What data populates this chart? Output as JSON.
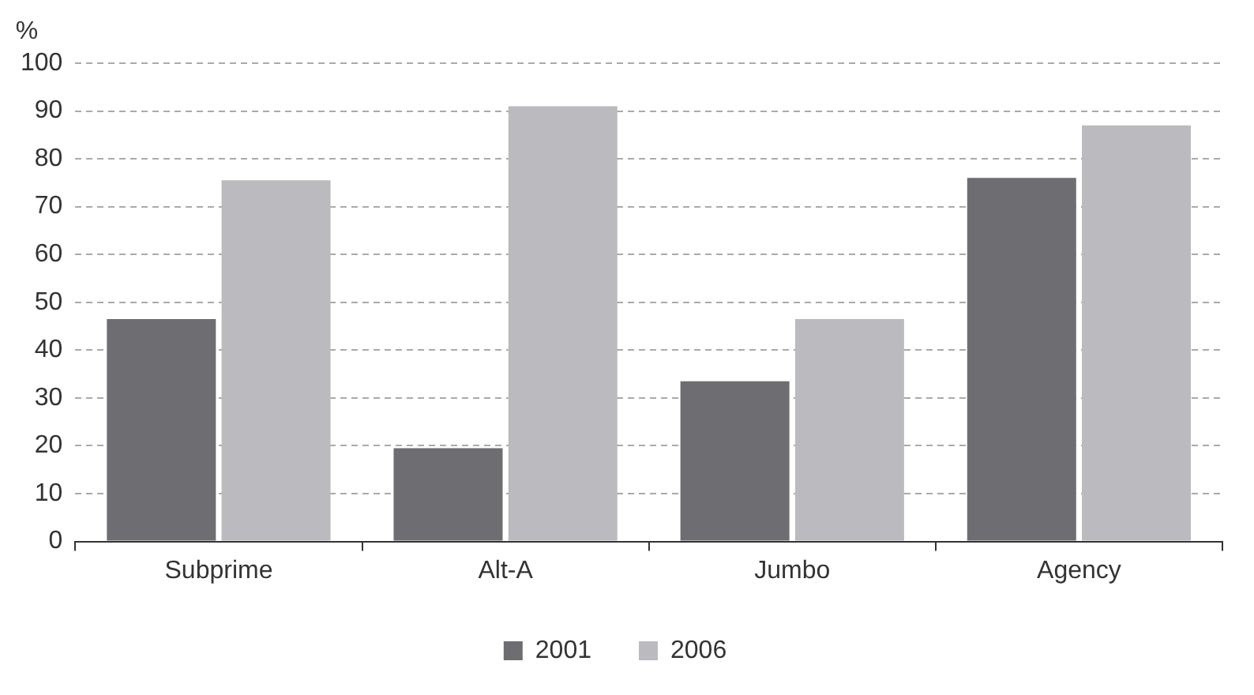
{
  "chart_data": {
    "type": "bar",
    "ylabel": "%",
    "categories": [
      "Subprime",
      "Alt-A",
      "Jumbo",
      "Agency"
    ],
    "series": [
      {
        "name": "2001",
        "color": "#6d6d72",
        "values": [
          46.5,
          19.5,
          33.5,
          76
        ]
      },
      {
        "name": "2006",
        "color": "#bbbbbf",
        "values": [
          75.5,
          91,
          46.5,
          87
        ]
      }
    ],
    "ylim": [
      0,
      100
    ],
    "yticks": [
      0,
      10,
      20,
      30,
      40,
      50,
      60,
      70,
      80,
      90,
      100
    ],
    "grid": "y",
    "line_style": "dashed",
    "legend": "bottom"
  }
}
